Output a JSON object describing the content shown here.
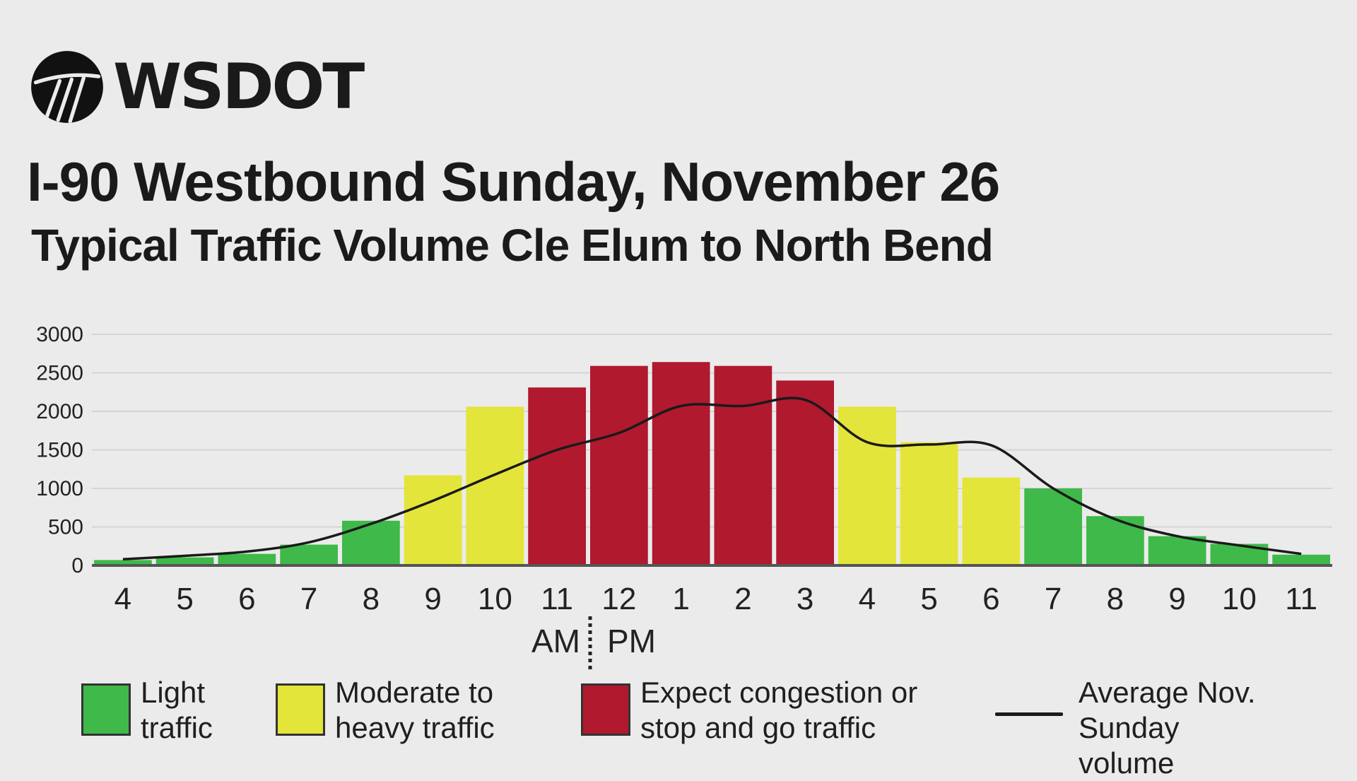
{
  "logo": {
    "text": "WSDOT"
  },
  "title": "I-90 Westbound Sunday, November 26",
  "subtitle": "Typical Traffic Volume Cle Elum to North Bend",
  "colors": {
    "light": "#3fb94a",
    "moderate": "#e3e53a",
    "congestion": "#b0192e",
    "line": "#1a1a1a",
    "grid": "#d4d4d4",
    "background": "#ebebeb"
  },
  "chart_data": {
    "type": "bar",
    "title": "I-90 Westbound Sunday, November 26",
    "subtitle": "Typical Traffic Volume Cle Elum to North Bend",
    "categories": [
      "4",
      "5",
      "6",
      "7",
      "8",
      "9",
      "10",
      "11",
      "12",
      "1",
      "2",
      "3",
      "4",
      "5",
      "6",
      "7",
      "8",
      "9",
      "10",
      "11"
    ],
    "values": [
      70,
      105,
      150,
      270,
      580,
      1170,
      2060,
      2310,
      2590,
      2640,
      2590,
      2400,
      2060,
      1600,
      1140,
      1000,
      640,
      380,
      280,
      140
    ],
    "levels": [
      "light",
      "light",
      "light",
      "light",
      "light",
      "moderate",
      "moderate",
      "congestion",
      "congestion",
      "congestion",
      "congestion",
      "congestion",
      "moderate",
      "moderate",
      "moderate",
      "light",
      "light",
      "light",
      "light",
      "light"
    ],
    "series": [
      {
        "name": "Average Nov. Sunday volume",
        "type": "line",
        "values": [
          80,
          125,
          180,
          300,
          540,
          840,
          1180,
          1500,
          1720,
          2070,
          2070,
          2150,
          1600,
          1570,
          1560,
          1000,
          600,
          380,
          260,
          150
        ]
      }
    ],
    "ylim": [
      0,
      3000
    ],
    "yticks": [
      0,
      500,
      1000,
      1500,
      2000,
      2500,
      3000
    ],
    "xlabel": "",
    "ylabel": "",
    "am_label": "AM",
    "pm_label": "PM",
    "grid": true,
    "legend": [
      {
        "level": "light",
        "text": "Light traffic",
        "lines": [
          "Light",
          "traffic"
        ]
      },
      {
        "level": "moderate",
        "text": "Moderate to heavy traffic",
        "lines": [
          "Moderate to",
          "heavy traffic"
        ]
      },
      {
        "level": "congestion",
        "text": "Expect congestion or stop and go traffic",
        "lines": [
          "Expect congestion or",
          "stop and go traffic"
        ]
      },
      {
        "level": "line",
        "text": "Average Nov. Sunday volume",
        "lines": [
          "Average Nov. Sunday",
          "volume"
        ]
      }
    ]
  }
}
